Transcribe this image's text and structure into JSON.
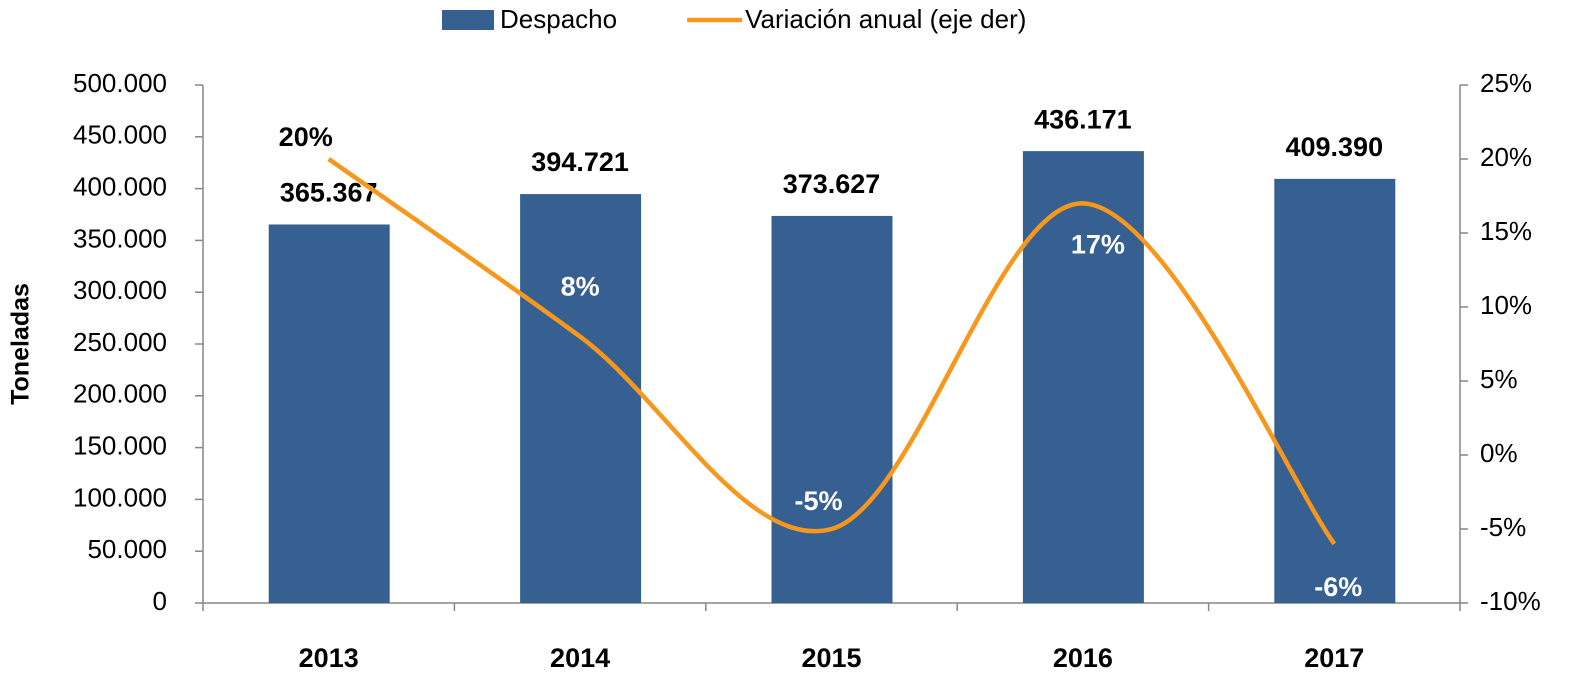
{
  "chart_data": {
    "type": "bar",
    "categories": [
      "2013",
      "2014",
      "2015",
      "2016",
      "2017"
    ],
    "y_label": "Toneladas",
    "series": [
      {
        "name": "Despacho",
        "type": "bar",
        "color": "#376092",
        "values": [
          365367,
          394721,
          373627,
          436171,
          409390
        ],
        "value_labels": [
          "365.367",
          "394.721",
          "373.627",
          "436.171",
          "409.390"
        ]
      },
      {
        "name": "Variación anual (eje der)",
        "type": "line",
        "axis": "y2",
        "color": "#f7981d",
        "values": [
          20,
          8,
          -5,
          17,
          -6
        ],
        "value_labels": [
          "20%",
          "8%",
          "-5%",
          "17%",
          "-6%"
        ]
      }
    ],
    "ylim": [
      0,
      500000
    ],
    "yticks": [
      0,
      {
        "value": 50000,
        "label": "50.000"
      },
      {
        "value": 100000,
        "label": "100.000"
      },
      {
        "value": 150000,
        "label": "150.000"
      },
      {
        "value": 200000,
        "label": "200.000"
      },
      {
        "value": 250000,
        "label": "250.000"
      },
      {
        "value": 300000,
        "label": "300.000"
      },
      {
        "value": 350000,
        "label": "350.000"
      },
      {
        "value": 400000,
        "label": "400.000"
      },
      {
        "value": 450000,
        "label": "450.000"
      },
      {
        "value": 500000,
        "label": "500.000"
      }
    ],
    "y2lim": [
      -10,
      25
    ],
    "y2ticks": [
      {
        "value": -10,
        "label": "-10%"
      },
      {
        "value": -5,
        "label": "-5%"
      },
      {
        "value": 0,
        "label": "0%"
      },
      {
        "value": 5,
        "label": "5%"
      },
      {
        "value": 10,
        "label": "10%"
      },
      {
        "value": 15,
        "label": "15%"
      },
      {
        "value": 20,
        "label": "20%"
      },
      {
        "value": 25,
        "label": "25%"
      }
    ],
    "grid": false,
    "legend": "top"
  }
}
